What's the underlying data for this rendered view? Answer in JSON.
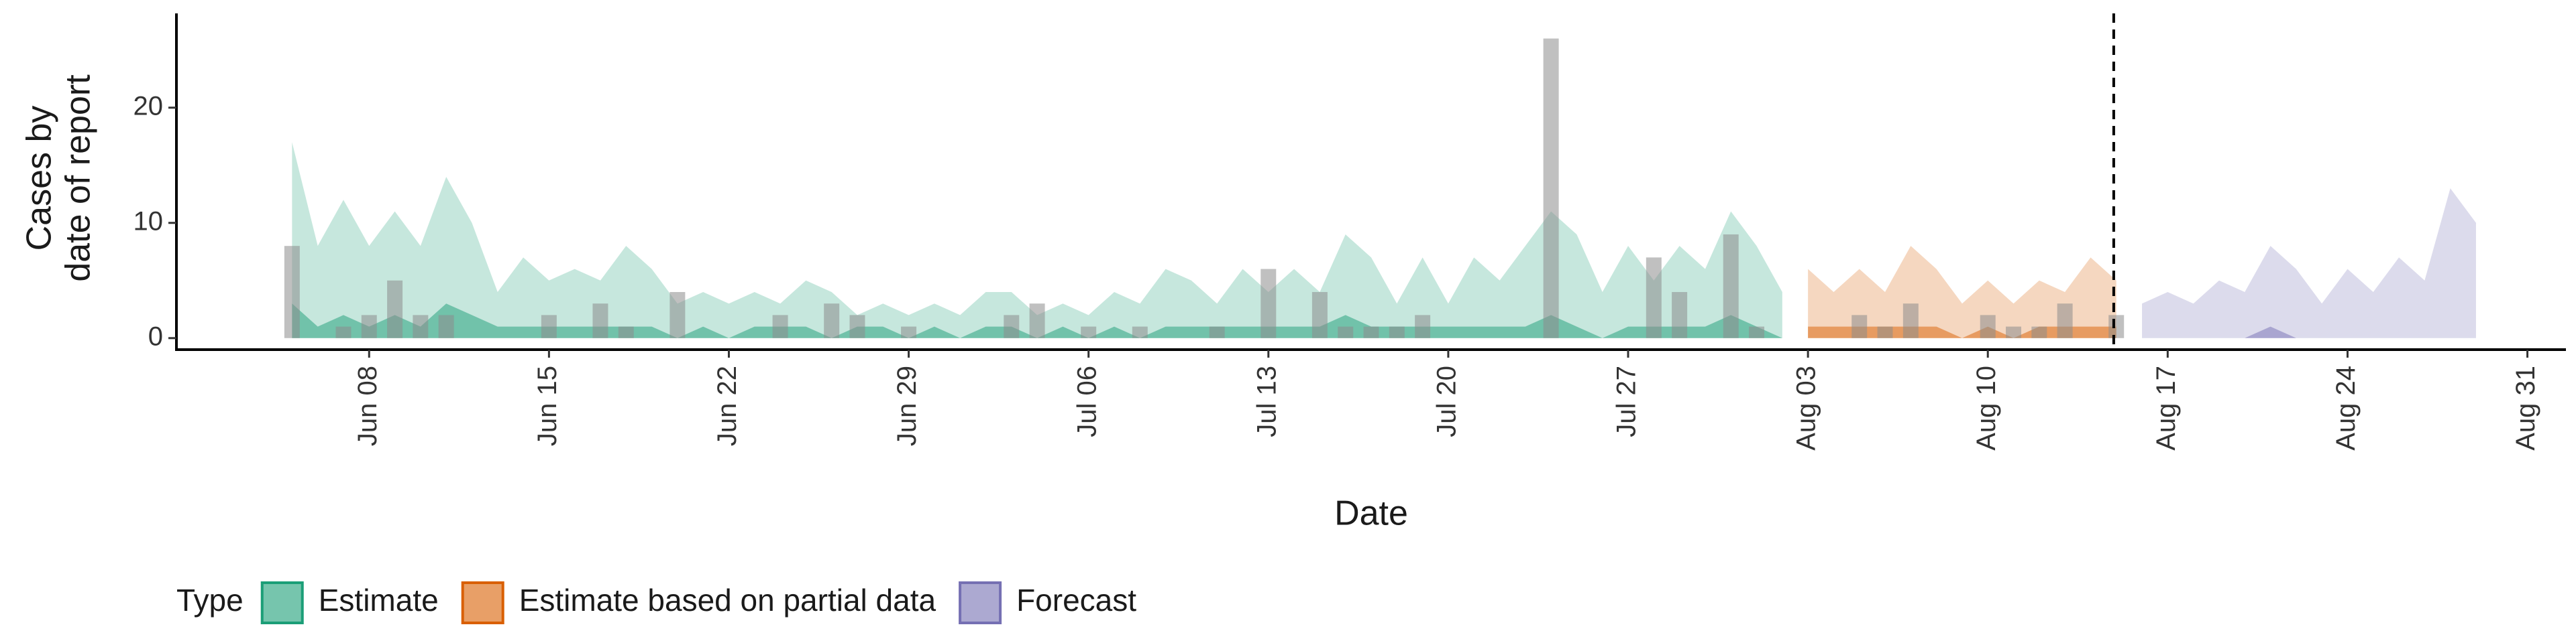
{
  "chart_data": {
    "type": "area",
    "ylabel": [
      "Cases by",
      "date of report"
    ],
    "xlabel": "Date",
    "legend_title": "Type",
    "legend_position": "bottom-left",
    "categories": [
      null,
      null,
      null,
      null,
      null,
      null,
      null,
      "Jun 08",
      null,
      null,
      null,
      null,
      null,
      null,
      "Jun 15",
      null,
      null,
      null,
      null,
      null,
      null,
      "Jun 22",
      null,
      null,
      null,
      null,
      null,
      null,
      "Jun 29",
      null,
      null,
      null,
      null,
      null,
      null,
      "Jul 06",
      null,
      null,
      null,
      null,
      null,
      null,
      "Jul 13",
      null,
      null,
      null,
      null,
      null,
      null,
      "Jul 20",
      null,
      null,
      null,
      null,
      null,
      null,
      "Jul 27",
      null,
      null,
      null,
      null,
      null,
      null,
      "Aug 03",
      null,
      null,
      null,
      null,
      null,
      null,
      "Aug 10",
      null,
      null,
      null,
      null,
      null,
      null,
      "Aug 17",
      null,
      null,
      null,
      null,
      null,
      null,
      "Aug 24",
      null,
      null,
      null,
      null,
      null,
      null,
      "Aug 31",
      null
    ],
    "ylim": [
      -1,
      27.6
    ],
    "yticks": [
      0,
      10,
      20
    ],
    "bars": {
      "color": "#8c8c8c",
      "values": [
        null,
        null,
        null,
        null,
        8,
        0,
        1,
        2,
        5,
        2,
        2,
        0,
        0,
        0,
        2,
        0,
        3,
        1,
        0,
        4,
        0,
        0,
        0,
        2,
        0,
        3,
        2,
        0,
        1,
        0,
        0,
        0,
        2,
        3,
        0,
        1,
        0,
        1,
        0,
        0,
        1,
        0,
        6,
        0,
        4,
        1,
        1,
        1,
        2,
        0,
        0,
        0,
        0,
        26,
        0,
        0,
        0,
        7,
        4,
        0,
        9,
        1,
        0,
        0,
        0,
        2,
        1,
        3,
        0,
        0,
        2,
        1,
        1,
        3,
        0,
        2,
        null,
        null,
        null,
        null,
        null,
        null,
        null,
        null,
        null,
        null,
        null,
        null,
        null,
        null,
        null,
        null,
        null
      ]
    },
    "series": [
      {
        "name": "Estimate",
        "color": "#1b9e77",
        "values": [
          null,
          null,
          null,
          null,
          17,
          8,
          12,
          8,
          11,
          8,
          14,
          10,
          4,
          7,
          5,
          6,
          5,
          8,
          6,
          3,
          4,
          3,
          4,
          3,
          5,
          4,
          2,
          3,
          2,
          3,
          2,
          4,
          4,
          2,
          3,
          2,
          4,
          3,
          6,
          5,
          3,
          6,
          4,
          6,
          4,
          9,
          7,
          3,
          7,
          3,
          7,
          5,
          8,
          11,
          9,
          4,
          8,
          5,
          8,
          6,
          11,
          8,
          4,
          null,
          null,
          null,
          null,
          null,
          null,
          null,
          null,
          null,
          null,
          null,
          null,
          null,
          null,
          null,
          null,
          null,
          null,
          null,
          null,
          null,
          null,
          null,
          null,
          null,
          null,
          null,
          null,
          null,
          null
        ],
        "inner_values": [
          null,
          null,
          null,
          null,
          3,
          1,
          2,
          1,
          2,
          1,
          3,
          2,
          1,
          1,
          1,
          1,
          1,
          1,
          1,
          0,
          1,
          0,
          1,
          1,
          1,
          0,
          1,
          1,
          0,
          1,
          0,
          1,
          1,
          0,
          1,
          0,
          1,
          0,
          1,
          1,
          1,
          1,
          1,
          1,
          1,
          2,
          1,
          1,
          1,
          1,
          1,
          1,
          1,
          2,
          1,
          0,
          1,
          1,
          1,
          1,
          2,
          1,
          0,
          null,
          null,
          null,
          null,
          null,
          null,
          null,
          null,
          null,
          null,
          null,
          null,
          null,
          null,
          null,
          null,
          null,
          null,
          null,
          null,
          null,
          null,
          null,
          null,
          null,
          null,
          null,
          null,
          null,
          null
        ]
      },
      {
        "name": "Estimate based on partial data",
        "color": "#d95f02",
        "values": [
          null,
          null,
          null,
          null,
          null,
          null,
          null,
          null,
          null,
          null,
          null,
          null,
          null,
          null,
          null,
          null,
          null,
          null,
          null,
          null,
          null,
          null,
          null,
          null,
          null,
          null,
          null,
          null,
          null,
          null,
          null,
          null,
          null,
          null,
          null,
          null,
          null,
          null,
          null,
          null,
          null,
          null,
          null,
          null,
          null,
          null,
          null,
          null,
          null,
          null,
          null,
          null,
          null,
          null,
          null,
          null,
          null,
          null,
          null,
          null,
          null,
          null,
          null,
          6,
          4,
          6,
          4,
          8,
          6,
          3,
          5,
          3,
          5,
          4,
          7,
          5,
          null,
          null,
          null,
          null,
          null,
          null,
          null,
          null,
          null,
          null,
          null,
          null,
          null,
          null,
          null,
          null,
          null
        ],
        "inner_values": [
          null,
          null,
          null,
          null,
          null,
          null,
          null,
          null,
          null,
          null,
          null,
          null,
          null,
          null,
          null,
          null,
          null,
          null,
          null,
          null,
          null,
          null,
          null,
          null,
          null,
          null,
          null,
          null,
          null,
          null,
          null,
          null,
          null,
          null,
          null,
          null,
          null,
          null,
          null,
          null,
          null,
          null,
          null,
          null,
          null,
          null,
          null,
          null,
          null,
          null,
          null,
          null,
          null,
          null,
          null,
          null,
          null,
          null,
          null,
          null,
          null,
          null,
          null,
          1,
          1,
          1,
          1,
          1,
          1,
          0,
          1,
          0,
          1,
          1,
          1,
          1,
          null,
          null,
          null,
          null,
          null,
          null,
          null,
          null,
          null,
          null,
          null,
          null,
          null,
          null,
          null,
          null,
          null
        ]
      },
      {
        "name": "Forecast",
        "color": "#7570b3",
        "values": [
          null,
          null,
          null,
          null,
          null,
          null,
          null,
          null,
          null,
          null,
          null,
          null,
          null,
          null,
          null,
          null,
          null,
          null,
          null,
          null,
          null,
          null,
          null,
          null,
          null,
          null,
          null,
          null,
          null,
          null,
          null,
          null,
          null,
          null,
          null,
          null,
          null,
          null,
          null,
          null,
          null,
          null,
          null,
          null,
          null,
          null,
          null,
          null,
          null,
          null,
          null,
          null,
          null,
          null,
          null,
          null,
          null,
          null,
          null,
          null,
          null,
          null,
          null,
          null,
          null,
          null,
          null,
          null,
          null,
          null,
          null,
          null,
          null,
          null,
          null,
          null,
          3,
          4,
          3,
          5,
          4,
          8,
          6,
          3,
          6,
          4,
          7,
          5,
          13,
          10,
          null,
          null,
          null
        ],
        "inner_values": [
          null,
          null,
          null,
          null,
          null,
          null,
          null,
          null,
          null,
          null,
          null,
          null,
          null,
          null,
          null,
          null,
          null,
          null,
          null,
          null,
          null,
          null,
          null,
          null,
          null,
          null,
          null,
          null,
          null,
          null,
          null,
          null,
          null,
          null,
          null,
          null,
          null,
          null,
          null,
          null,
          null,
          null,
          null,
          null,
          null,
          null,
          null,
          null,
          null,
          null,
          null,
          null,
          null,
          null,
          null,
          null,
          null,
          null,
          null,
          null,
          null,
          null,
          null,
          null,
          null,
          null,
          null,
          null,
          null,
          null,
          null,
          null,
          null,
          null,
          null,
          null,
          0,
          0,
          0,
          0,
          0,
          1,
          0,
          0,
          0,
          0,
          0,
          0,
          0,
          0,
          null,
          null,
          null
        ]
      }
    ]
  }
}
